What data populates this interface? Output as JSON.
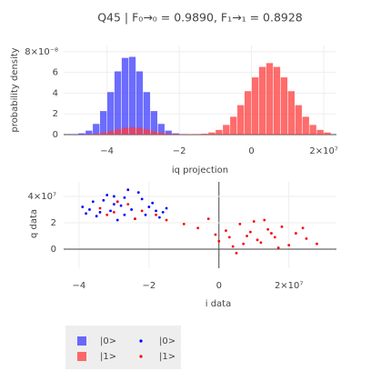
{
  "chart_data": [
    {
      "type": "histogram",
      "title": "Q45 | F₀→₀ = 0.9890, F₁→₁ = 0.8928",
      "xlabel": "iq projection",
      "ylabel": "probability density",
      "bins": [
        -50000000.0,
        -48000000.0,
        -46000000.0,
        -44000000.0,
        -42000000.0,
        -40000000.0,
        -38000000.0,
        -36000000.0,
        -34000000.0,
        -32000000.0,
        -30000000.0,
        -28000000.0,
        -26000000.0,
        -24000000.0,
        -22000000.0,
        -20000000.0,
        -18000000.0,
        -16000000.0,
        -14000000.0,
        -12000000.0,
        -10000000.0,
        -8000000.0,
        -6000000.0,
        -4000000.0,
        -2000000.0,
        0,
        2000000.0,
        4000000.0,
        6000000.0,
        8000000.0,
        10000000.0,
        12000000.0,
        14000000.0,
        16000000.0,
        18000000.0,
        20000000.0,
        22000000.0
      ],
      "series": [
        {
          "name": "|0>",
          "color": "#3b3bff",
          "values": [
            3e-10,
            1.2e-09,
            3.8e-09,
            1.03e-08,
            2.27e-08,
            4.1e-08,
            6.1e-08,
            7.4e-08,
            7.5e-08,
            6.1e-08,
            4.1e-08,
            2.27e-08,
            1.03e-08,
            3.8e-09,
            1.2e-09,
            5e-10,
            2e-10,
            1e-10,
            0,
            0,
            0,
            0,
            0,
            0,
            0,
            0,
            0,
            0,
            0,
            0,
            0,
            0,
            0,
            0,
            0,
            0
          ]
        },
        {
          "name": "|1>",
          "color": "#ff3b3b",
          "values": [
            4e-11,
            1.4e-10,
            4e-10,
            9e-10,
            1.9e-09,
            3.4e-09,
            5.1e-09,
            6.5e-09,
            7e-09,
            6.5e-09,
            5.1e-09,
            3.4e-09,
            1.9e-09,
            9e-10,
            5e-10,
            4e-10,
            4e-10,
            5e-10,
            8e-10,
            2e-09,
            4.5e-09,
            9.3e-09,
            1.72e-08,
            2.84e-08,
            4.19e-08,
            5.52e-08,
            6.53e-08,
            6.9e-08,
            6.53e-08,
            5.52e-08,
            4.19e-08,
            2.84e-08,
            1.72e-08,
            9.3e-09,
            4.5e-09,
            2e-09
          ]
        }
      ],
      "xlim": [
        -52000000.0,
        23500000.0
      ],
      "ylim": [
        0,
        8.6e-08
      ],
      "xticks": [
        {
          "value": -40000000.0,
          "label": "−4"
        },
        {
          "value": -20000000.0,
          "label": "−2"
        },
        0,
        {
          "value": 20000000.0,
          "label": "2×10⁷"
        }
      ],
      "yticks": [
        0,
        {
          "value": 2e-08,
          "label": "2"
        },
        {
          "value": 4e-08,
          "label": "4"
        },
        {
          "value": 6e-08,
          "label": "6"
        },
        {
          "value": 8e-08,
          "label": "8×10⁻⁸"
        }
      ],
      "grid": true
    },
    {
      "type": "scatter",
      "xlabel": "i data",
      "ylabel": "q data",
      "series": [
        {
          "name": "|0>",
          "color": "#0000ff",
          "x": [
            -39000000.0,
            -36000000.0,
            -34000000.0,
            -32000000.0,
            -30000000.0,
            -29000000.0,
            -27000000.0,
            -25000000.0,
            -23000000.0,
            -21000000.0,
            -19000000.0,
            -17000000.0,
            -15000000.0,
            -35000000.0,
            -31000000.0,
            -28000000.0,
            -26000000.0,
            -22000000.0,
            -18000000.0,
            -38000000.0,
            -33000000.0,
            -24000000.0,
            -20000000.0,
            -16000000.0,
            -30000000.0,
            -27000000.0,
            -37000000.0,
            -29000000.0
          ],
          "y": [
            32000000.0,
            36000000.0,
            28000000.0,
            41000000.0,
            34000000.0,
            22000000.0,
            39000000.0,
            30000000.0,
            43000000.0,
            26000000.0,
            35000000.0,
            24000000.0,
            31000000.0,
            25000000.0,
            29000000.0,
            33000000.0,
            45000000.0,
            38000000.0,
            29000000.0,
            27000000.0,
            37000000.0,
            23000000.0,
            32000000.0,
            28000000.0,
            40000000.0,
            26000000.0,
            30000000.0,
            36000000.0
          ]
        },
        {
          "name": "|1>",
          "color": "#ff0000",
          "x": [
            -34000000.0,
            -30000000.0,
            -26000000.0,
            -22000000.0,
            -18000000.0,
            -29000000.0,
            -24000000.0,
            -32000000.0,
            -15000000.0,
            -10000000.0,
            -6000000.0,
            -3000000.0,
            0,
            2000000.0,
            4000000.0,
            6000000.0,
            8000000.0,
            10000000.0,
            12000000.0,
            14000000.0,
            16000000.0,
            18000000.0,
            20000000.0,
            22000000.0,
            25000000.0,
            28000000.0,
            5000000.0,
            9000000.0,
            13000000.0,
            17000000.0,
            3000000.0,
            11000000.0,
            -1000000.0,
            24000000.0,
            7000000.0,
            15000000.0
          ],
          "y": [
            31000000.0,
            28000000.0,
            34000000.0,
            29000000.0,
            26000000.0,
            36000000.0,
            23000000.0,
            26000000.0,
            22000000.0,
            19000000.0,
            16000000.0,
            23000000.0,
            6000000.0,
            14000000.0,
            2000000.0,
            19000000.0,
            10000000.0,
            21000000.0,
            5000000.0,
            15000000.0,
            9000000.0,
            17000000.0,
            3000000.0,
            12000000.0,
            8000000.0,
            4000000.0,
            -3000000.0,
            13000000.0,
            22000000.0,
            1000000.0,
            9000000.0,
            7000000.0,
            11000000.0,
            16000000.0,
            4000000.0,
            12000000.0
          ]
        }
      ],
      "xlim": [
        -44400000.0,
        33600000.0
      ],
      "ylim": [
        -14500000.0,
        51000000.0
      ],
      "xticks": [
        {
          "value": -40000000.0,
          "label": "−4"
        },
        {
          "value": -20000000.0,
          "label": "−2"
        },
        0,
        {
          "value": 20000000.0,
          "label": "2×10⁷"
        }
      ],
      "yticks": [
        0,
        {
          "value": 20000000.0,
          "label": "2"
        },
        {
          "value": 40000000.0,
          "label": "4×10⁷"
        }
      ],
      "grid": true
    }
  ]
}
